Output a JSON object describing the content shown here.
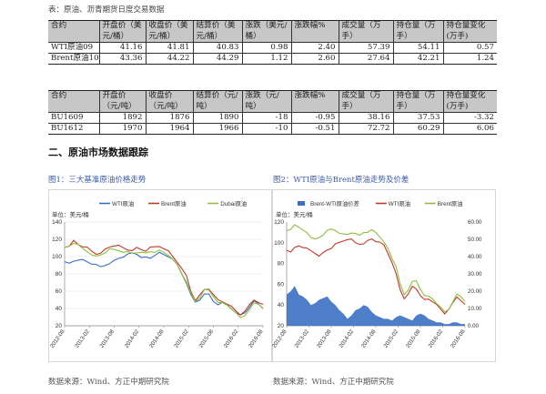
{
  "caption": "表：原油、沥青期货日度交易数据",
  "table1": {
    "headers": [
      "合约",
      "开盘价（美元/桶）",
      "收盘价（美元/桶）",
      "结算价（美元/桶）",
      "涨跌（美元/桶）",
      "涨跌幅%",
      "成交量（万手）",
      "持仓量（万手）",
      "持仓量变化(万手)"
    ],
    "rows": [
      [
        "WTI原油09",
        "41.16",
        "41.81",
        "40.83",
        "0.98",
        "2.40",
        "57.39",
        "54.11",
        "0.57"
      ],
      [
        "Brent原油10",
        "43.36",
        "44.22",
        "44.29",
        "1.12",
        "2.60",
        "27.64",
        "42.21",
        "1.24"
      ]
    ]
  },
  "table2": {
    "headers": [
      "合约",
      "开盘价（元/吨）",
      "收盘价（元/吨）",
      "结算价（元/吨）",
      "涨跌（元/吨）",
      "涨跌幅%",
      "成交量（万手）",
      "持仓量（万手）",
      "持仓量变化(万手)"
    ],
    "rows": [
      [
        "BU1609",
        "1892",
        "1876",
        "1890",
        "-18",
        "-0.95",
        "38.16",
        "37.53",
        "-3.32"
      ],
      [
        "BU1612",
        "1970",
        "1964",
        "1966",
        "-10",
        "-0.51",
        "72.72",
        "60.29",
        "6.06"
      ]
    ]
  },
  "section_title": "二、原油市场数据跟踪",
  "figure1": {
    "label": "图1：三大基准原油价格走势",
    "source": "数据来源：Wind、方正中期研究院"
  },
  "figure2": {
    "label": "图2：WTI原油与Brent原油走势及价差",
    "source": "数据来源：Wind、方正中期研究院"
  },
  "chart_data": [
    {
      "type": "line",
      "unit_label": "单位：美元/桶",
      "series": [
        {
          "name": "WTI原油",
          "color": "#3b6fc4",
          "values": [
            93,
            92,
            95,
            97,
            96,
            94,
            92,
            90,
            88,
            90,
            93,
            95,
            98,
            100,
            102,
            104,
            103,
            100,
            99,
            98,
            102,
            104,
            102,
            100,
            98,
            90,
            80,
            70,
            55,
            47,
            50,
            58,
            56,
            48,
            45,
            46,
            44,
            40,
            36,
            32,
            35,
            42,
            48,
            45,
            40
          ]
        },
        {
          "name": "Brent原油",
          "color": "#c0392b",
          "values": [
            111,
            113,
            118,
            114,
            112,
            110,
            106,
            103,
            105,
            108,
            111,
            113,
            112,
            110,
            108,
            108,
            110,
            108,
            107,
            110,
            111,
            112,
            110,
            106,
            100,
            94,
            85,
            78,
            60,
            50,
            55,
            62,
            63,
            55,
            50,
            48,
            46,
            42,
            37,
            33,
            36,
            44,
            50,
            48,
            44
          ]
        },
        {
          "name": "Dubai原油",
          "color": "#8fbf3c",
          "values": [
            110,
            112,
            116,
            113,
            109,
            106,
            103,
            100,
            102,
            105,
            108,
            108,
            107,
            106,
            105,
            104,
            105,
            104,
            104,
            106,
            106,
            107,
            105,
            102,
            96,
            90,
            80,
            72,
            57,
            48,
            53,
            61,
            61,
            54,
            48,
            46,
            44,
            40,
            34,
            29,
            32,
            40,
            46,
            45,
            41
          ]
        }
      ],
      "x_ticks": [
        "2012-08",
        "2013-02",
        "2013-08",
        "2014-02",
        "2014-08",
        "2015-02",
        "2015-08",
        "2016-02",
        "2016-08"
      ],
      "ylim": [
        20,
        140
      ],
      "y_ticks": [
        20,
        40,
        60,
        80,
        100,
        120,
        140
      ],
      "grid": true,
      "legend": "top"
    },
    {
      "type": "line",
      "unit_label": "单位：美元/桶",
      "series": [
        {
          "name": "Brent-WTI原油价差",
          "color": "#3b6fc4",
          "kind": "area",
          "axis": "right",
          "values": [
            18,
            20,
            23,
            18,
            17,
            15,
            12,
            13,
            15,
            16,
            17,
            14,
            12,
            9,
            7,
            4,
            6,
            9,
            10,
            12,
            11,
            8,
            6,
            5,
            4,
            4,
            3,
            5,
            6,
            5,
            4,
            3,
            6,
            7,
            6,
            4,
            3,
            2,
            2,
            1,
            1,
            2,
            2,
            1,
            1
          ]
        },
        {
          "name": "WTI原油",
          "color": "#c0392b",
          "axis": "left",
          "values": [
            93,
            92,
            95,
            97,
            96,
            94,
            92,
            90,
            88,
            90,
            93,
            95,
            98,
            100,
            102,
            104,
            103,
            100,
            99,
            98,
            102,
            104,
            102,
            100,
            98,
            90,
            80,
            70,
            55,
            47,
            50,
            58,
            56,
            48,
            45,
            46,
            44,
            40,
            36,
            32,
            35,
            42,
            48,
            45,
            40
          ]
        },
        {
          "name": "Brent原油",
          "color": "#8fbf3c",
          "axis": "left",
          "values": [
            111,
            113,
            118,
            114,
            112,
            110,
            106,
            103,
            105,
            108,
            111,
            113,
            112,
            110,
            108,
            108,
            110,
            108,
            107,
            110,
            111,
            112,
            110,
            106,
            100,
            94,
            85,
            78,
            60,
            50,
            55,
            62,
            63,
            55,
            50,
            48,
            46,
            42,
            37,
            33,
            36,
            44,
            50,
            48,
            44
          ]
        }
      ],
      "x_ticks": [
        "2012-08",
        "2013-02",
        "2013-08",
        "2014-02",
        "2014-08",
        "2015-02",
        "2015-08",
        "2016-02",
        "2016-08"
      ],
      "ylim_left": [
        20,
        120
      ],
      "y_ticks_left": [
        20,
        40,
        60,
        80,
        100,
        120
      ],
      "ylim_right": [
        0,
        60
      ],
      "y_ticks_right": [
        "0.00",
        "10.00",
        "20.00",
        "30.00",
        "40.00",
        "50.00",
        "60.00"
      ],
      "grid": false,
      "legend": "top"
    }
  ]
}
